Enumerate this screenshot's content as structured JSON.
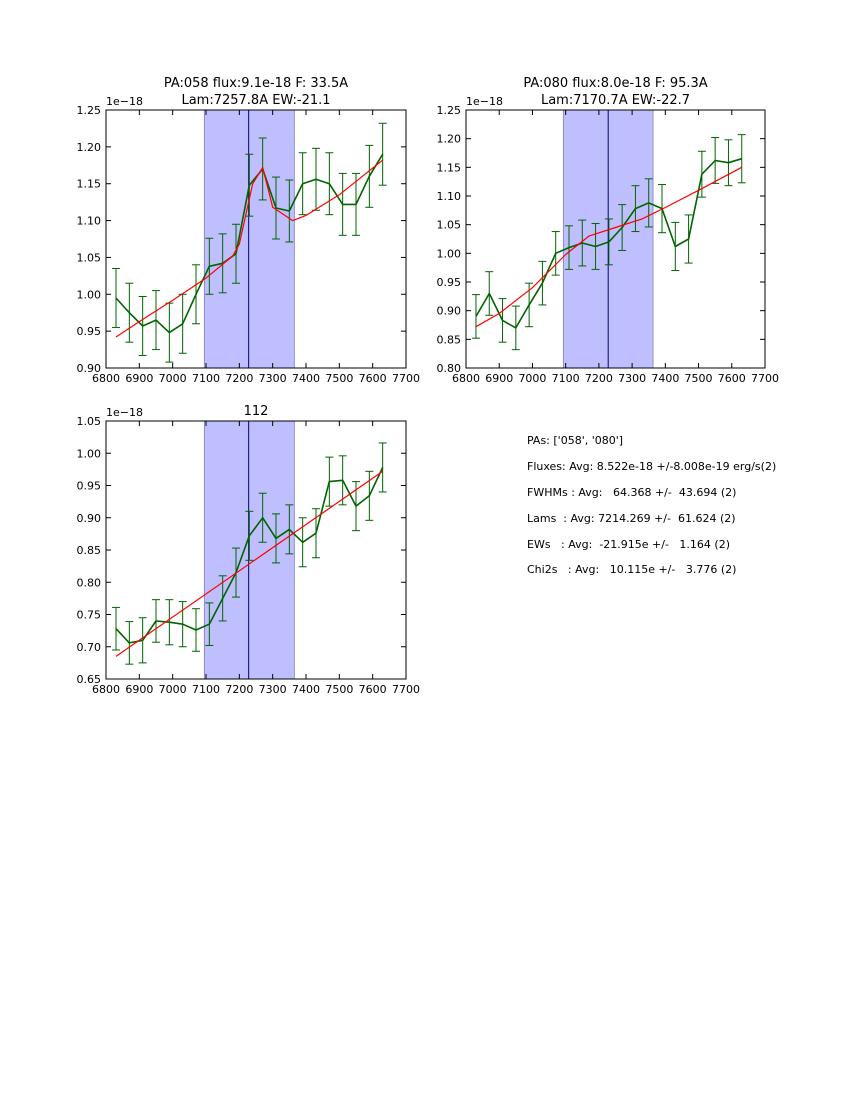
{
  "chart_data": [
    {
      "type": "line",
      "title": [
        "PA:058 flux:9.1e-18 F: 33.5A",
        "Lam:7257.8A EW:-21.1"
      ],
      "offset_label": "1e−18",
      "xlim": [
        6800,
        7700
      ],
      "ylim": [
        0.9,
        1.25
      ],
      "xticks": [
        "6800",
        "6900",
        "7000",
        "7100",
        "7200",
        "7300",
        "7400",
        "7500",
        "7600",
        "7700"
      ],
      "yticks": [
        "0.90",
        "0.95",
        "1.00",
        "1.05",
        "1.10",
        "1.15",
        "1.20",
        "1.25"
      ],
      "band": [
        7095,
        7365
      ],
      "center_line": 7228,
      "series": [
        {
          "name": "data",
          "color": "#006400",
          "x": [
            6830,
            6870,
            6910,
            6950,
            6990,
            7030,
            7070,
            7110,
            7150,
            7190,
            7230,
            7270,
            7310,
            7350,
            7390,
            7430,
            7470,
            7510,
            7550,
            7590,
            7630
          ],
          "y": [
            0.995,
            0.975,
            0.957,
            0.965,
            0.948,
            0.96,
            1.0,
            1.038,
            1.042,
            1.055,
            1.148,
            1.17,
            1.117,
            1.113,
            1.15,
            1.156,
            1.15,
            1.122,
            1.122,
            1.16,
            1.19
          ],
          "err": [
            0.04,
            0.04,
            0.04,
            0.04,
            0.04,
            0.04,
            0.04,
            0.038,
            0.04,
            0.04,
            0.042,
            0.042,
            0.042,
            0.042,
            0.042,
            0.042,
            0.042,
            0.042,
            0.042,
            0.042,
            0.042
          ]
        },
        {
          "name": "fit",
          "color": "#ff0000",
          "x": [
            6830,
            6900,
            7000,
            7100,
            7180,
            7200,
            7240,
            7270,
            7300,
            7360,
            7400,
            7500,
            7630
          ],
          "y": [
            0.942,
            0.963,
            0.992,
            1.022,
            1.052,
            1.068,
            1.15,
            1.172,
            1.118,
            1.1,
            1.107,
            1.135,
            1.182
          ]
        }
      ]
    },
    {
      "type": "line",
      "title": [
        "PA:080 flux:8.0e-18 F: 95.3A",
        "Lam:7170.7A EW:-22.7"
      ],
      "offset_label": "1e−18",
      "xlim": [
        6800,
        7700
      ],
      "ylim": [
        0.8,
        1.25
      ],
      "xticks": [
        "6800",
        "6900",
        "7000",
        "7100",
        "7200",
        "7300",
        "7400",
        "7500",
        "7600",
        "7700"
      ],
      "yticks": [
        "0.80",
        "0.85",
        "0.90",
        "0.95",
        "1.00",
        "1.05",
        "1.10",
        "1.15",
        "1.20",
        "1.25"
      ],
      "band": [
        7093,
        7363
      ],
      "center_line": 7228,
      "series": [
        {
          "name": "data",
          "color": "#006400",
          "x": [
            6830,
            6870,
            6910,
            6950,
            6990,
            7030,
            7070,
            7110,
            7150,
            7190,
            7230,
            7270,
            7310,
            7350,
            7390,
            7430,
            7470,
            7510,
            7550,
            7590,
            7630
          ],
          "y": [
            0.89,
            0.93,
            0.883,
            0.87,
            0.91,
            0.948,
            1.0,
            1.01,
            1.018,
            1.012,
            1.02,
            1.045,
            1.078,
            1.088,
            1.078,
            1.012,
            1.025,
            1.138,
            1.162,
            1.158,
            1.165
          ],
          "err": [
            0.038,
            0.038,
            0.038,
            0.038,
            0.038,
            0.038,
            0.038,
            0.038,
            0.04,
            0.04,
            0.04,
            0.04,
            0.04,
            0.042,
            0.042,
            0.042,
            0.042,
            0.04,
            0.04,
            0.04,
            0.042
          ]
        },
        {
          "name": "fit",
          "color": "#ff0000",
          "x": [
            6830,
            6900,
            7000,
            7100,
            7170,
            7250,
            7330,
            7400,
            7500,
            7630
          ],
          "y": [
            0.872,
            0.895,
            0.94,
            0.998,
            1.03,
            1.045,
            1.06,
            1.08,
            1.11,
            1.15
          ]
        }
      ]
    },
    {
      "type": "line",
      "title": [
        "112"
      ],
      "offset_label": "1e−18",
      "xlim": [
        6800,
        7700
      ],
      "ylim": [
        0.65,
        1.05
      ],
      "xticks": [
        "6800",
        "6900",
        "7000",
        "7100",
        "7200",
        "7300",
        "7400",
        "7500",
        "7600",
        "7700"
      ],
      "yticks": [
        "0.65",
        "0.70",
        "0.75",
        "0.80",
        "0.85",
        "0.90",
        "0.95",
        "1.00",
        "1.05"
      ],
      "band": [
        7095,
        7365
      ],
      "center_line": 7228,
      "series": [
        {
          "name": "data",
          "color": "#006400",
          "x": [
            6830,
            6870,
            6910,
            6950,
            6990,
            7030,
            7070,
            7110,
            7150,
            7190,
            7230,
            7270,
            7310,
            7350,
            7390,
            7430,
            7470,
            7510,
            7550,
            7590,
            7630
          ],
          "y": [
            0.728,
            0.706,
            0.71,
            0.74,
            0.738,
            0.735,
            0.726,
            0.735,
            0.775,
            0.815,
            0.872,
            0.9,
            0.868,
            0.882,
            0.862,
            0.876,
            0.956,
            0.958,
            0.918,
            0.934,
            0.978
          ],
          "err": [
            0.033,
            0.033,
            0.035,
            0.033,
            0.035,
            0.035,
            0.033,
            0.033,
            0.035,
            0.038,
            0.038,
            0.038,
            0.038,
            0.038,
            0.038,
            0.038,
            0.038,
            0.038,
            0.038,
            0.038,
            0.038
          ]
        },
        {
          "name": "fit",
          "color": "#ff0000",
          "x": [
            6830,
            7630
          ],
          "y": [
            0.685,
            0.972
          ]
        }
      ]
    }
  ],
  "summary": {
    "pas": "PAs: ['058', '080']",
    "fluxes": "Fluxes: Avg: 8.522e-18 +/-8.008e-19 erg/s(2)",
    "fwhms": "FWHMs : Avg:   64.368 +/-  43.694 (2)",
    "lams": "Lams  : Avg: 7214.269 +/-  61.624 (2)",
    "ews": "EWs   : Avg:  -21.915e +/-   1.164 (2)",
    "chi2s": "Chi2s   : Avg:   10.115e +/-   3.776 (2)"
  }
}
